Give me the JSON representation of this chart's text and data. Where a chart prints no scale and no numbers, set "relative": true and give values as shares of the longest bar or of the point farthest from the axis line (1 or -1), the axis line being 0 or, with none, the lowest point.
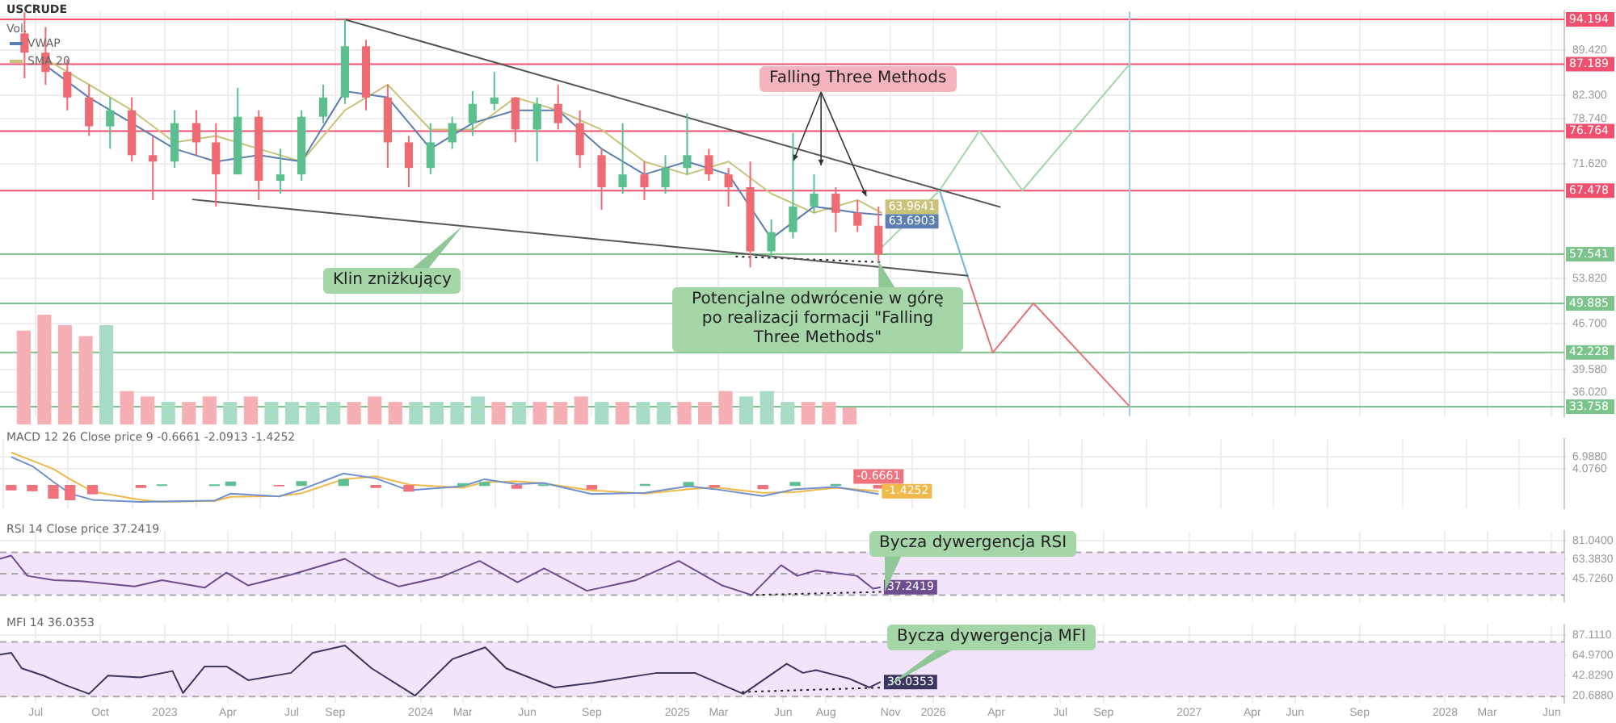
{
  "chart_data": [
    {
      "type": "candlestick",
      "title": "USCRUDE",
      "legend": "top left",
      "grid": true,
      "tick_labels": "y",
      "x": [
        "2022-06-15",
        "2022-07-15",
        "2022-08-15",
        "2022-09-15",
        "2022-10-15",
        "2022-11-15",
        "2022-12-15",
        "2023-01-15",
        "2023-02-15",
        "2023-03-15",
        "2023-04-15",
        "2023-05-15",
        "2023-06-15",
        "2023-07-15",
        "2023-08-15",
        "2023-09-15",
        "2023-10-15",
        "2023-11-15",
        "2023-12-15",
        "2024-01-15",
        "2024-02-15",
        "2024-03-15",
        "2024-04-15",
        "2024-05-15",
        "2024-06-15",
        "2024-07-15",
        "2024-08-15",
        "2024-09-15",
        "2024-10-15",
        "2024-11-15",
        "2024-12-15",
        "2025-01-15",
        "2025-02-15",
        "2025-03-15",
        "2025-04-15",
        "2025-05-15",
        "2025-06-15",
        "2025-07-15",
        "2025-08-15",
        "2025-09-15",
        "2025-10-15"
      ],
      "ohlc": [
        [
          92,
          95.3,
          85,
          89
        ],
        [
          89,
          93,
          84,
          86
        ],
        [
          86,
          88,
          80,
          82
        ],
        [
          82,
          84,
          76,
          77.5
        ],
        [
          77.5,
          82,
          74,
          80
        ],
        [
          80,
          82,
          72,
          73
        ],
        [
          73,
          76,
          66,
          72
        ],
        [
          72,
          80,
          71,
          78
        ],
        [
          78,
          80,
          73,
          75
        ],
        [
          75,
          78,
          65,
          70
        ],
        [
          70,
          83.5,
          70,
          79
        ],
        [
          79,
          80,
          66,
          69
        ],
        [
          69,
          74,
          67,
          70
        ],
        [
          70,
          80,
          69,
          79
        ],
        [
          79,
          84,
          78,
          82
        ],
        [
          82,
          94.2,
          81,
          90
        ],
        [
          90,
          91,
          80,
          82
        ],
        [
          82,
          84,
          71,
          75
        ],
        [
          75,
          76,
          68,
          71
        ],
        [
          71,
          78,
          70,
          75
        ],
        [
          75,
          79,
          74,
          78
        ],
        [
          78,
          83,
          76,
          81
        ],
        [
          81,
          86,
          80,
          82
        ],
        [
          82,
          82,
          75,
          77
        ],
        [
          77,
          82,
          72,
          81
        ],
        [
          81,
          84,
          77,
          78
        ],
        [
          78,
          80,
          71,
          73
        ],
        [
          73,
          74,
          64.5,
          68
        ],
        [
          68,
          78,
          67,
          70
        ],
        [
          70,
          72,
          66,
          68
        ],
        [
          68,
          73,
          67,
          71
        ],
        [
          71,
          79.5,
          70,
          73
        ],
        [
          73,
          74,
          69,
          70
        ],
        [
          70,
          71,
          65,
          68
        ],
        [
          68,
          72,
          55.5,
          58
        ],
        [
          58,
          63,
          57,
          61
        ],
        [
          61,
          76.5,
          60,
          65
        ],
        [
          65,
          70,
          64,
          67
        ],
        [
          67,
          68,
          61,
          64
        ],
        [
          64,
          66,
          61,
          62
        ],
        [
          62,
          65,
          56.5,
          57.5
        ]
      ],
      "colors": [
        "#ef6b73",
        "#ef6b73",
        "#ef6b73",
        "#ef6b73",
        "#5bbf8f",
        "#ef6b73",
        "#ef6b73",
        "#5bbf8f",
        "#ef6b73",
        "#ef6b73",
        "#5bbf8f",
        "#ef6b73",
        "#5bbf8f",
        "#5bbf8f",
        "#5bbf8f",
        "#5bbf8f",
        "#ef6b73",
        "#ef6b73",
        "#ef6b73",
        "#5bbf8f",
        "#5bbf8f",
        "#5bbf8f",
        "#5bbf8f",
        "#ef6b73",
        "#5bbf8f",
        "#ef6b73",
        "#ef6b73",
        "#ef6b73",
        "#5bbf8f",
        "#ef6b73",
        "#5bbf8f",
        "#5bbf8f",
        "#ef6b73",
        "#ef6b73",
        "#ef6b73",
        "#5bbf8f",
        "#5bbf8f",
        "#5bbf8f",
        "#ef6b73",
        "#ef6b73",
        "#ef6b73"
      ],
      "series": [
        {
          "name": "VWAP",
          "type": "line",
          "color": "#5b7fb0",
          "x": [
            "2022-07-15",
            "2022-09-15",
            "2022-11-15",
            "2023-01-15",
            "2023-03-15",
            "2023-05-15",
            "2023-07-15",
            "2023-09-15",
            "2023-11-15",
            "2024-01-15",
            "2024-03-15",
            "2024-05-15",
            "2024-07-15",
            "2024-09-15",
            "2024-11-15",
            "2025-01-15",
            "2025-03-15",
            "2025-05-15",
            "2025-07-15",
            "2025-09-15",
            "2025-10-20"
          ],
          "values": [
            87,
            82,
            78,
            74,
            72,
            73,
            72,
            83,
            82,
            74,
            78,
            80,
            80,
            74,
            70,
            72,
            70,
            60,
            65,
            64,
            63.6903
          ],
          "value_labels": [
            null,
            null,
            null,
            null,
            null,
            null,
            null,
            null,
            null,
            null,
            null,
            null,
            null,
            null,
            null,
            null,
            null,
            null,
            null,
            null,
            "63.6903"
          ]
        },
        {
          "name": "SMA 20",
          "type": "line",
          "color": "#c9c27a",
          "x": [
            "2022-07-15",
            "2022-09-15",
            "2022-11-15",
            "2023-01-15",
            "2023-03-15",
            "2023-05-15",
            "2023-07-15",
            "2023-09-15",
            "2023-11-15",
            "2024-01-15",
            "2024-03-15",
            "2024-05-15",
            "2024-07-15",
            "2024-09-15",
            "2024-11-15",
            "2025-01-15",
            "2025-03-15",
            "2025-05-15",
            "2025-07-15",
            "2025-09-15",
            "2025-10-20"
          ],
          "values": [
            88,
            84,
            80,
            75,
            76,
            74,
            72,
            80,
            84,
            77,
            77,
            82,
            80,
            77,
            72,
            70,
            72,
            67,
            64,
            66,
            63.9641
          ],
          "value_labels": [
            null,
            null,
            null,
            null,
            null,
            null,
            null,
            null,
            null,
            null,
            null,
            null,
            null,
            null,
            null,
            null,
            null,
            null,
            null,
            null,
            "63.9641"
          ]
        },
        {
          "type": "line",
          "color": "#555555",
          "x": [
            "2023-09-14",
            "2026-04-07"
          ],
          "values": [
            94.2,
            64.9
          ]
        },
        {
          "type": "line",
          "color": "#555555",
          "x": [
            "2023-02-09",
            "2026-02-20"
          ],
          "values": [
            66.1,
            54.2
          ]
        },
        {
          "type": "line",
          "color": "#222222",
          "line_style": "dotted",
          "x": [
            "2025-03-25",
            "2025-10-20"
          ],
          "values": [
            57.2,
            56.3
          ]
        },
        {
          "type": "line",
          "color": "#a5d6a7",
          "x": [
            "2025-10-09",
            "2026-01-10",
            "2026-03-08",
            "2026-05-08",
            "2026-10-08"
          ],
          "values": [
            57.5,
            67.5,
            76.8,
            67.5,
            87.2
          ]
        },
        {
          "type": "line",
          "color": "#6fb3e0",
          "x": [
            "2026-01-10",
            "2026-02-20"
          ],
          "values": [
            67.5,
            53.8
          ]
        },
        {
          "type": "line",
          "color": "#e57373",
          "x": [
            "2026-02-20",
            "2026-03-27",
            "2026-05-24",
            "2026-10-08"
          ],
          "values": [
            53.8,
            42.2,
            49.9,
            33.8
          ]
        }
      ],
      "ref_lines": [
        {
          "axis": "y",
          "value": 94.194,
          "label": "94.194",
          "color": "#f0506e"
        },
        {
          "axis": "y",
          "value": 87.189,
          "label": "87.189",
          "color": "#f0506e"
        },
        {
          "axis": "y",
          "value": 76.764,
          "label": "76.764",
          "color": "#f0506e"
        },
        {
          "axis": "y",
          "value": 67.478,
          "label": "67.478",
          "color": "#f0506e"
        },
        {
          "axis": "y",
          "value": 57.541,
          "label": "57.541",
          "color": "#7cc38c"
        },
        {
          "axis": "y",
          "value": 49.885,
          "label": "49.885",
          "color": "#7cc38c"
        },
        {
          "axis": "y",
          "value": 42.228,
          "label": "42.228",
          "color": "#7cc38c"
        },
        {
          "axis": "y",
          "value": 33.758,
          "label": "33.758",
          "color": "#7cc38c"
        },
        {
          "axis": "x",
          "value": "2026-10-08",
          "color": "#9ecbe6"
        }
      ],
      "annotations": [
        {
          "text": "Falling Three Methods",
          "x": "2025-07-25",
          "y": 71.4
        },
        {
          "text": "Klin zniżkujący",
          "x": "2024-03-01",
          "y": 62
        },
        {
          "text": "Potencjalne odwrócenie w górę po realizacji formacji \"Falling Three Methods\"",
          "x": "2025-10-15",
          "y": 56.5
        }
      ],
      "xlim": [
        "2022-05-11",
        "2028-06-19"
      ],
      "xticks": [
        {
          "value": "2022-07-01",
          "label": null
        },
        {
          "value": "2022-10-01",
          "label": null
        },
        {
          "value": "2023-01-01",
          "label": null
        },
        {
          "value": "2023-04-01",
          "label": null
        },
        {
          "value": "2023-07-01",
          "label": null
        },
        {
          "value": "2023-09-01",
          "label": null
        },
        {
          "value": "2024-01-01",
          "label": null
        },
        {
          "value": "2024-03-01",
          "label": null
        },
        {
          "value": "2024-06-01",
          "label": null
        },
        {
          "value": "2024-09-01",
          "label": null
        },
        {
          "value": "2025-01-01",
          "label": null
        },
        {
          "value": "2025-03-01",
          "label": null
        },
        {
          "value": "2025-06-01",
          "label": null
        },
        {
          "value": "2025-08-01",
          "label": null
        },
        {
          "value": "2025-11-01",
          "label": null
        },
        {
          "value": "2026-01-01",
          "label": null
        },
        {
          "value": "2026-04-01",
          "label": null
        },
        {
          "value": "2026-07-01",
          "label": null
        },
        {
          "value": "2026-09-01",
          "label": null
        },
        {
          "value": "2027-01-01",
          "label": null
        },
        {
          "value": "2027-04-01",
          "label": null
        },
        {
          "value": "2027-06-01",
          "label": null
        },
        {
          "value": "2027-09-01",
          "label": null
        },
        {
          "value": "2028-01-01",
          "label": null
        },
        {
          "value": "2028-03-01",
          "label": null
        },
        {
          "value": "2028-06-01",
          "label": null
        }
      ],
      "ylim": [
        32.3,
        95.4
      ],
      "yticks": [
        {
          "value": 89.42,
          "label": "89.420"
        },
        {
          "value": 82.3,
          "label": "82.300"
        },
        {
          "value": 78.74,
          "label": "78.740"
        },
        {
          "value": 71.62,
          "label": "71.620"
        },
        {
          "value": 53.82,
          "label": "53.820"
        },
        {
          "value": 46.7,
          "label": "46.700"
        },
        {
          "value": 39.58,
          "label": "39.580"
        },
        {
          "value": 36.02,
          "label": "36.020"
        }
      ]
    },
    {
      "type": "bar",
      "title": "Vol.",
      "relative": true,
      "tick_labels": false,
      "categories": [
        null,
        null,
        null,
        null,
        null,
        null,
        null,
        null,
        null,
        null,
        null,
        null,
        null,
        null,
        null,
        null,
        null,
        null,
        null,
        null,
        null,
        null,
        null,
        null,
        null,
        null,
        null,
        null,
        null,
        null,
        null,
        null,
        null,
        null,
        null,
        null,
        null,
        null,
        null,
        null,
        null
      ],
      "values": [
        0.85,
        1,
        0.9,
        0.8,
        0.9,
        0.3,
        0.25,
        0.2,
        0.2,
        0.25,
        0.2,
        0.25,
        0.2,
        0.2,
        0.2,
        0.2,
        0.2,
        0.25,
        0.2,
        0.2,
        0.2,
        0.2,
        0.25,
        0.2,
        0.2,
        0.2,
        0.2,
        0.25,
        0.2,
        0.2,
        0.2,
        0.2,
        0.2,
        0.2,
        0.3,
        0.25,
        0.3,
        0.2,
        0.2,
        0.2,
        0.15
      ],
      "colors": [
        "#f6b0b5",
        "#f6b0b5",
        "#f6b0b5",
        "#f6b0b5",
        "#a8dcc4",
        "#f6b0b5",
        "#f6b0b5",
        "#a8dcc4",
        "#f6b0b5",
        "#f6b0b5",
        "#a8dcc4",
        "#f6b0b5",
        "#a8dcc4",
        "#a8dcc4",
        "#a8dcc4",
        "#a8dcc4",
        "#f6b0b5",
        "#f6b0b5",
        "#f6b0b5",
        "#a8dcc4",
        "#a8dcc4",
        "#a8dcc4",
        "#a8dcc4",
        "#f6b0b5",
        "#a8dcc4",
        "#f6b0b5",
        "#f6b0b5",
        "#f6b0b5",
        "#a8dcc4",
        "#f6b0b5",
        "#a8dcc4",
        "#a8dcc4",
        "#f6b0b5",
        "#f6b0b5",
        "#f6b0b5",
        "#a8dcc4",
        "#a8dcc4",
        "#a8dcc4",
        "#f6b0b5",
        "#f6b0b5",
        "#f6b0b5"
      ]
    },
    {
      "type": "line",
      "title": "MACD 12 26 Close price 9 -0.6661 -2.0913 -1.4252",
      "grid": true,
      "tick_labels": "y",
      "x": [
        "2022-05-27",
        "2022-06-26",
        "2022-07-26",
        "2022-08-19",
        "2022-09-20",
        "2022-11-28",
        "2022-12-28",
        "2023-03-13",
        "2023-04-05",
        "2023-06-13",
        "2023-07-15",
        "2023-09-13",
        "2023-10-29",
        "2023-12-15",
        "2024-03-01",
        "2024-04-01",
        "2024-05-17",
        "2024-06-24",
        "2024-09-01",
        "2024-11-16",
        "2025-01-17",
        "2025-02-23",
        "2025-05-03",
        "2025-06-18",
        "2025-08-15",
        "2025-10-15"
      ],
      "series": [
        {
          "type": "bar",
          "colors": [
            "#f0727c",
            "#f0727c",
            "#f0727c",
            "#f0727c",
            "#f0727c",
            "#f0727c",
            "#5fbf94",
            "#5fbf94",
            "#5fbf94",
            "#f0727c",
            "#5fbf94",
            "#5fbf94",
            "#f0727c",
            "#f0727c",
            "#5fbf94",
            "#5fbf94",
            "#f0727c",
            "#5fbf94",
            "#f0727c",
            "#5fbf94",
            "#5fbf94",
            "#f0727c",
            "#f0727c",
            "#5fbf94",
            "#5fbf94",
            "#f0727c"
          ],
          "values": [
            -1.1,
            -1.3,
            -3.1,
            -3.5,
            -2,
            -0.5,
            0.1,
            0.1,
            0.8,
            -0.1,
            0.9,
            1.4,
            -0.5,
            -1.4,
            0.4,
            0.7,
            -0.7,
            0.1,
            -0.9,
            0.2,
            0.7,
            -0.4,
            -0.8,
            0.7,
            0.2,
            -0.6661
          ],
          "value_labels": [
            null,
            null,
            null,
            null,
            null,
            null,
            null,
            null,
            null,
            null,
            null,
            null,
            null,
            null,
            null,
            null,
            null,
            null,
            null,
            null,
            null,
            null,
            null,
            null,
            null,
            "-0.6661"
          ]
        },
        {
          "type": "line",
          "color": "#6f8fcf",
          "values": [
            6.9,
            4.7,
            0.9,
            -2,
            -3.5,
            -4,
            -3.9,
            -3.7,
            -2,
            -2.7,
            -1,
            2.9,
            1.7,
            -1.2,
            -0.2,
            1.5,
            0.3,
            0.6,
            -2.1,
            -1.8,
            -0.2,
            -0.9,
            -2.6,
            -0.9,
            -0.4,
            -2.1
          ]
        },
        {
          "type": "line",
          "color": "#f0b94a",
          "values": [
            8,
            6,
            4,
            1.5,
            -1.5,
            -3.5,
            -4,
            -3.8,
            -2.8,
            -2.6,
            -1.9,
            1.5,
            2.2,
            0.2,
            -0.6,
            0.8,
            1,
            0.5,
            -1.2,
            -2,
            -0.9,
            -0.5,
            -1.8,
            -1.6,
            -0.6,
            -1.4252
          ],
          "value_labels": [
            null,
            null,
            null,
            null,
            null,
            null,
            null,
            null,
            null,
            null,
            null,
            null,
            null,
            null,
            null,
            null,
            null,
            null,
            null,
            null,
            null,
            null,
            null,
            null,
            null,
            "-1.4252"
          ]
        }
      ],
      "xlim": [
        "2022-05-11",
        "2028-06-19"
      ],
      "xticks": [
        {
          "value": "2022-07-01",
          "label": null
        },
        {
          "value": "2022-10-01",
          "label": null
        },
        {
          "value": "2023-01-01",
          "label": null
        },
        {
          "value": "2023-04-01",
          "label": null
        },
        {
          "value": "2023-07-01",
          "label": null
        },
        {
          "value": "2023-09-01",
          "label": null
        },
        {
          "value": "2024-01-01",
          "label": null
        },
        {
          "value": "2024-03-01",
          "label": null
        },
        {
          "value": "2024-06-01",
          "label": null
        },
        {
          "value": "2024-09-01",
          "label": null
        },
        {
          "value": "2025-01-01",
          "label": null
        },
        {
          "value": "2025-03-01",
          "label": null
        },
        {
          "value": "2025-06-01",
          "label": null
        },
        {
          "value": "2025-08-01",
          "label": null
        },
        {
          "value": "2025-11-01",
          "label": null
        },
        {
          "value": "2026-01-01",
          "label": null
        },
        {
          "value": "2026-04-01",
          "label": null
        },
        {
          "value": "2026-07-01",
          "label": null
        },
        {
          "value": "2026-09-01",
          "label": null
        },
        {
          "value": "2027-01-01",
          "label": null
        },
        {
          "value": "2027-04-01",
          "label": null
        },
        {
          "value": "2027-06-01",
          "label": null
        },
        {
          "value": "2027-09-01",
          "label": null
        },
        {
          "value": "2028-01-01",
          "label": null
        },
        {
          "value": "2028-03-01",
          "label": null
        },
        {
          "value": "2028-06-01",
          "label": null
        }
      ],
      "ylim": [
        -5.5,
        11.2
      ],
      "yticks": [
        {
          "value": 6.988,
          "label": "6.9880"
        },
        {
          "value": 4.076,
          "label": "4.0760"
        }
      ]
    },
    {
      "type": "line",
      "title": "RSI 14 Close price 37.2419",
      "grid": true,
      "tick_labels": "y",
      "series": [
        {
          "color": "#6d4c8f",
          "x": [
            "2022-05-11",
            "2022-05-27",
            "2022-06-19",
            "2022-07-27",
            "2022-09-04",
            "2022-11-19",
            "2022-12-28",
            "2023-02-27",
            "2023-03-30",
            "2023-04-30",
            "2023-06-30",
            "2023-09-15",
            "2023-10-31",
            "2023-12-01",
            "2024-01-31",
            "2024-03-25",
            "2024-05-18",
            "2024-06-25",
            "2024-08-25",
            "2024-11-03",
            "2025-01-03",
            "2025-03-06",
            "2025-04-17",
            "2025-05-29",
            "2025-06-21",
            "2025-07-18",
            "2025-09-14",
            "2025-10-07",
            "2025-10-18"
          ],
          "values": [
            64,
            67,
            48,
            44,
            43,
            38,
            44,
            37,
            51,
            39,
            49,
            64,
            46,
            38,
            47,
            62,
            42,
            55,
            34,
            44,
            62,
            39,
            30,
            58,
            48,
            53,
            48,
            36,
            37.2419
          ],
          "value_labels": [
            null,
            null,
            null,
            null,
            null,
            null,
            null,
            null,
            null,
            null,
            null,
            null,
            null,
            null,
            null,
            null,
            null,
            null,
            null,
            null,
            null,
            null,
            null,
            null,
            null,
            null,
            null,
            null,
            "37.2419"
          ]
        },
        {
          "color": "#222222",
          "line_style": "dotted",
          "x": [
            "2025-04-14",
            "2025-10-24"
          ],
          "values": [
            30,
            33
          ]
        }
      ],
      "ref_lines": [
        {
          "axis": "y",
          "value": 70,
          "color": "#aaaaaa",
          "line_style": "dashed"
        },
        {
          "axis": "y",
          "value": 50,
          "color": "#aaaaaa",
          "line_style": "dashed"
        },
        {
          "axis": "y",
          "value": 30,
          "color": "#aaaaaa",
          "line_style": "dashed"
        }
      ],
      "bands": [
        {
          "axis": "y",
          "from": 30,
          "to": 70,
          "color": "#f1e4fb"
        }
      ],
      "annotations": [
        {
          "text": "Bycza dywergencja RSI",
          "x": "2025-10-24",
          "y": 33
        }
      ],
      "xlim": [
        "2022-05-11",
        "2028-06-19"
      ],
      "xticks": [
        {
          "value": "2022-07-01",
          "label": null
        },
        {
          "value": "2022-10-01",
          "label": null
        },
        {
          "value": "2023-01-01",
          "label": null
        },
        {
          "value": "2023-04-01",
          "label": null
        },
        {
          "value": "2023-07-01",
          "label": null
        },
        {
          "value": "2023-09-01",
          "label": null
        },
        {
          "value": "2024-01-01",
          "label": null
        },
        {
          "value": "2024-03-01",
          "label": null
        },
        {
          "value": "2024-06-01",
          "label": null
        },
        {
          "value": "2024-09-01",
          "label": null
        },
        {
          "value": "2025-01-01",
          "label": null
        },
        {
          "value": "2025-03-01",
          "label": null
        },
        {
          "value": "2025-06-01",
          "label": null
        },
        {
          "value": "2025-08-01",
          "label": null
        },
        {
          "value": "2025-11-01",
          "label": null
        },
        {
          "value": "2026-01-01",
          "label": null
        },
        {
          "value": "2026-04-01",
          "label": null
        },
        {
          "value": "2026-07-01",
          "label": null
        },
        {
          "value": "2026-09-01",
          "label": null
        },
        {
          "value": "2027-01-01",
          "label": null
        },
        {
          "value": "2027-04-01",
          "label": null
        },
        {
          "value": "2027-06-01",
          "label": null
        },
        {
          "value": "2027-09-01",
          "label": null
        },
        {
          "value": "2028-01-01",
          "label": null
        },
        {
          "value": "2028-03-01",
          "label": null
        },
        {
          "value": "2028-06-01",
          "label": null
        }
      ],
      "ylim": [
        23.8,
        89.8
      ],
      "yticks": [
        {
          "value": 81.04,
          "label": "81.0400"
        },
        {
          "value": 63.383,
          "label": "63.3830"
        },
        {
          "value": 45.726,
          "label": "45.7260"
        }
      ]
    },
    {
      "type": "line",
      "title": "MFI 14 36.0353",
      "grid": true,
      "series": [
        {
          "color": "#3b3560",
          "x": [
            "2022-05-11",
            "2022-05-27",
            "2022-06-11",
            "2022-07-12",
            "2022-08-11",
            "2022-09-15",
            "2022-10-12",
            "2022-11-27",
            "2023-01-12",
            "2023-01-27",
            "2023-02-27",
            "2023-03-30",
            "2023-04-30",
            "2023-06-30",
            "2023-07-31",
            "2023-09-15",
            "2023-10-23",
            "2023-12-24",
            "2024-02-15",
            "2024-04-02",
            "2024-05-02",
            "2024-07-10",
            "2024-09-02",
            "2024-12-03",
            "2025-01-26",
            "2025-04-05",
            "2025-06-06",
            "2025-06-29",
            "2025-07-18",
            "2025-09-02",
            "2025-10-02",
            "2025-10-18"
          ],
          "values": [
            66,
            68,
            51,
            43,
            33,
            23,
            43,
            41,
            48,
            24,
            53,
            53,
            38,
            46,
            68,
            76,
            51,
            21,
            61,
            74,
            51,
            30,
            35,
            46,
            46,
            23,
            56,
            46,
            49,
            40,
            30,
            36.0353
          ],
          "value_labels": [
            null,
            null,
            null,
            null,
            null,
            null,
            null,
            null,
            null,
            null,
            null,
            null,
            null,
            null,
            null,
            null,
            null,
            null,
            null,
            null,
            null,
            null,
            null,
            null,
            null,
            null,
            null,
            null,
            null,
            null,
            null,
            "36.0353"
          ]
        },
        {
          "color": "#222222",
          "line_style": "dotted",
          "x": [
            "2025-04-03",
            "2025-10-25"
          ],
          "values": [
            25,
            30
          ]
        }
      ],
      "ref_lines": [
        {
          "axis": "y",
          "value": 80,
          "color": "#aaaaaa",
          "line_style": "dashed"
        },
        {
          "axis": "y",
          "value": 20,
          "color": "#aaaaaa",
          "line_style": "dashed"
        }
      ],
      "bands": [
        {
          "axis": "y",
          "from": 20,
          "to": 80,
          "color": "#f1e4fb"
        }
      ],
      "annotations": [
        {
          "text": "Bycza dywergencja MFI",
          "x": "2025-10-25",
          "y": 30
        }
      ],
      "xlim": [
        "2022-05-11",
        "2028-06-19"
      ],
      "xticks": [
        {
          "value": "2022-07-01",
          "label": "Jul"
        },
        {
          "value": "2022-10-01",
          "label": "Oct"
        },
        {
          "value": "2023-01-01",
          "label": "2023"
        },
        {
          "value": "2023-04-01",
          "label": "Apr"
        },
        {
          "value": "2023-07-01",
          "label": "Jul"
        },
        {
          "value": "2023-09-01",
          "label": "Sep"
        },
        {
          "value": "2024-01-01",
          "label": "2024"
        },
        {
          "value": "2024-03-01",
          "label": "Mar"
        },
        {
          "value": "2024-06-01",
          "label": "Jun"
        },
        {
          "value": "2024-09-01",
          "label": "Sep"
        },
        {
          "value": "2025-01-01",
          "label": "2025"
        },
        {
          "value": "2025-03-01",
          "label": "Mar"
        },
        {
          "value": "2025-06-01",
          "label": "Jun"
        },
        {
          "value": "2025-08-01",
          "label": "Aug"
        },
        {
          "value": "2025-11-01",
          "label": "Nov"
        },
        {
          "value": "2026-01-01",
          "label": "2026"
        },
        {
          "value": "2026-04-01",
          "label": "Apr"
        },
        {
          "value": "2026-07-01",
          "label": "Jul"
        },
        {
          "value": "2026-09-01",
          "label": "Sep"
        },
        {
          "value": "2027-01-01",
          "label": "2027"
        },
        {
          "value": "2027-04-01",
          "label": "Apr"
        },
        {
          "value": "2027-06-01",
          "label": "Jun"
        },
        {
          "value": "2027-09-01",
          "label": "Sep"
        },
        {
          "value": "2028-01-01",
          "label": "2028"
        },
        {
          "value": "2028-03-01",
          "label": "Mar"
        },
        {
          "value": "2028-06-01",
          "label": "Jun"
        }
      ],
      "ylim": [
        13,
        98.6
      ],
      "yticks": [
        {
          "value": 87.111,
          "label": "87.1110"
        },
        {
          "value": 64.97,
          "label": "64.9700"
        },
        {
          "value": 42.829,
          "label": "42.8290"
        },
        {
          "value": 20.688,
          "label": "20.6880"
        }
      ]
    }
  ]
}
